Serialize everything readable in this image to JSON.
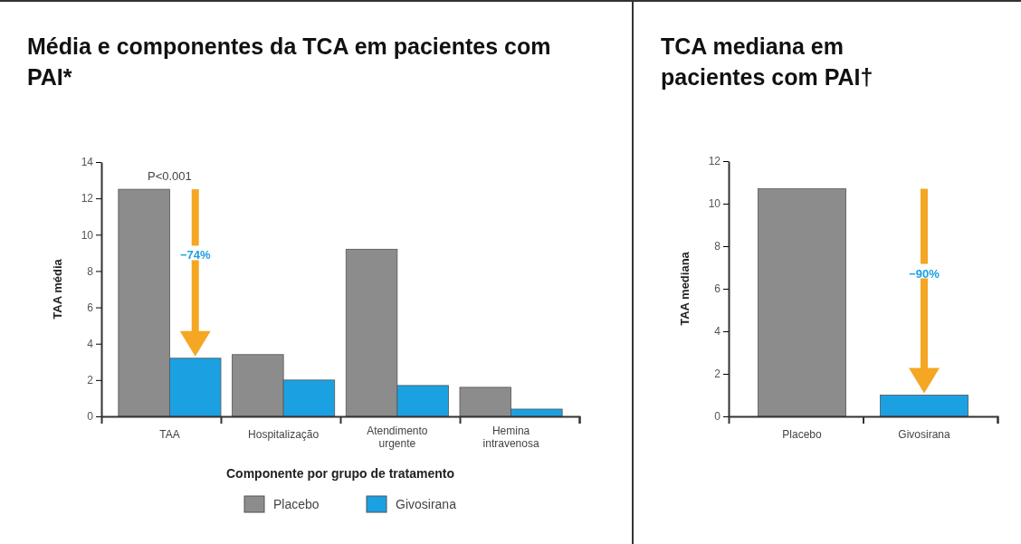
{
  "chart_data": [
    {
      "type": "bar",
      "title": "Média e componentes da TCA em pacientes com PAI*",
      "ylabel": "TAA média",
      "xlabel": "Componente por grupo de tratamento",
      "categories": [
        "TAA",
        "Hospitalização",
        "Atendimento urgente",
        "Hemina intravenosa"
      ],
      "series": [
        {
          "name": "Placebo",
          "color": "#8c8c8c",
          "values": [
            12.5,
            3.4,
            9.2,
            1.6
          ]
        },
        {
          "name": "Givosirana",
          "color": "#1ba1e2",
          "values": [
            3.2,
            2.0,
            1.7,
            0.4
          ]
        }
      ],
      "ylim": [
        0,
        14
      ],
      "yticks": [
        0,
        2,
        4,
        6,
        8,
        10,
        12,
        14
      ],
      "grid": false,
      "legend": "bottom",
      "annotations": [
        "P<0.001",
        "−74%"
      ]
    },
    {
      "type": "bar",
      "title": "TCA mediana em pacientes com PAI†",
      "ylabel": "TAA mediana",
      "categories": [
        "Placebo",
        "Givosirana"
      ],
      "values": [
        10.7,
        1.0
      ],
      "colors": [
        "#8c8c8c",
        "#1ba1e2"
      ],
      "ylim": [
        0,
        12
      ],
      "yticks": [
        0,
        2,
        4,
        6,
        8,
        10,
        12
      ],
      "grid": false,
      "legend": false,
      "annotations": [
        "−90%"
      ]
    }
  ]
}
